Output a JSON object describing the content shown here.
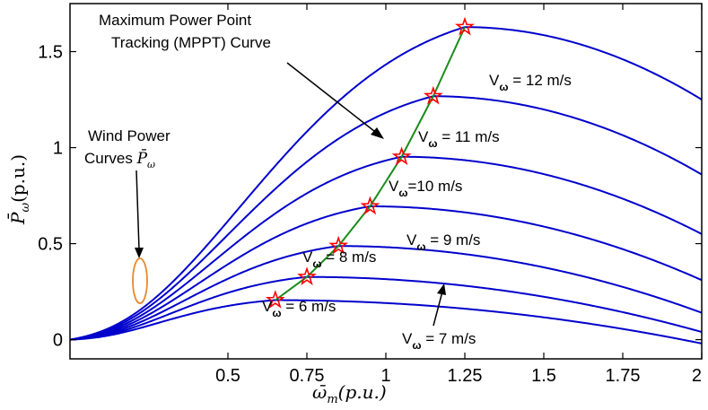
{
  "chart_data": {
    "type": "line",
    "title": "",
    "xlabel_var": "ω̄",
    "xlabel_sub": "m",
    "xlabel_rest": "(p.u.)",
    "ylabel_var": "P̄",
    "ylabel_sub": "ω",
    "ylabel_rest": "(p.u.)",
    "xlim": [
      0.0,
      2.0
    ],
    "ylim": [
      -0.1,
      1.75
    ],
    "x_ticks": [
      0.5,
      0.75,
      1.0,
      1.25,
      1.5,
      1.75,
      2.0
    ],
    "x_tick_labels": [
      "0.5",
      "0.75",
      "1",
      "1.25",
      "1.5",
      "1.75",
      "2"
    ],
    "y_ticks": [
      0,
      0.5,
      1.0,
      1.5
    ],
    "y_tick_labels": [
      "0",
      "0.5",
      "1",
      "1.5"
    ],
    "grid": false,
    "series": [
      {
        "label_prefix": "V",
        "label_sub": "ω",
        "label_suffix": " = 6 m/s",
        "x_peak": 0.65,
        "y_peak": 0.2058,
        "y_at_2": -0.02
      },
      {
        "label_prefix": "V",
        "label_sub": "ω",
        "label_suffix": " = 7 m/s",
        "x_peak": 0.75,
        "y_peak": 0.3266,
        "y_at_2": 0.04
      },
      {
        "label_prefix": "V",
        "label_sub": "ω",
        "label_suffix": " = 8 m/s",
        "x_peak": 0.85,
        "y_peak": 0.4876,
        "y_at_2": 0.14
      },
      {
        "label_prefix": "V",
        "label_sub": "ω",
        "label_suffix": " = 9 m/s",
        "x_peak": 0.95,
        "y_peak": 0.6943,
        "y_at_2": 0.31
      },
      {
        "label_prefix": "V",
        "label_sub": "ω",
        "label_suffix": "=10 m/s",
        "x_peak": 1.05,
        "y_peak": 0.9524,
        "y_at_2": 0.55
      },
      {
        "label_prefix": "V",
        "label_sub": "ω",
        "label_suffix": " = 11 m/s",
        "x_peak": 1.15,
        "y_peak": 1.2677,
        "y_at_2": 0.86
      },
      {
        "label_prefix": "V",
        "label_sub": "ω",
        "label_suffix": " = 12 m/s",
        "x_peak": 1.25,
        "y_peak": 1.6276,
        "y_at_2": 1.25
      }
    ],
    "mppt_curve": {
      "x": [
        0.65,
        0.75,
        0.85,
        0.95,
        1.05,
        1.15,
        1.25
      ],
      "y": [
        0.2058,
        0.3266,
        0.4876,
        0.6943,
        0.9524,
        1.2677,
        1.6276
      ]
    },
    "annotations": {
      "mppt_line1": "Maximum Power Point",
      "mppt_line2": "Tracking (MPPT) Curve",
      "wind_line1": "Wind Power",
      "wind_line2_text": "Curves ",
      "wind_line2_var": "P̄",
      "wind_line2_sub": "ω"
    },
    "colors": {
      "curves": "#0000cc",
      "mppt": "#1a8c1a",
      "star_edge": "#ff0000",
      "ellipse": "#e8892b",
      "axis": "#000000"
    }
  }
}
